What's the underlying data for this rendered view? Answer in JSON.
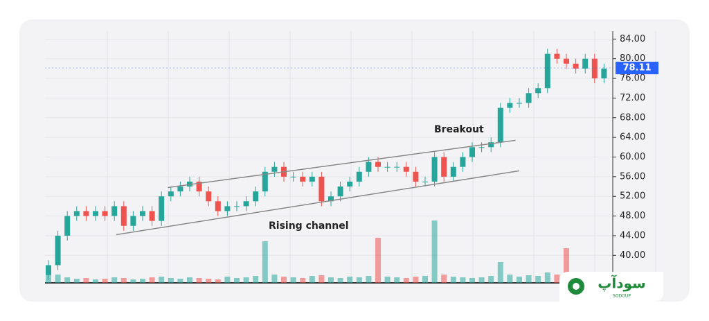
{
  "chart_data": {
    "type": "candlestick",
    "annotations": [
      "Breakout",
      "Rising channel"
    ],
    "categories": [
      null,
      null,
      null,
      null,
      null,
      null,
      null,
      null,
      null,
      null,
      null,
      null,
      null,
      null,
      null,
      null,
      null,
      null,
      null,
      null,
      null,
      null,
      null,
      null,
      null,
      null,
      null,
      null,
      null,
      null,
      null,
      null,
      null,
      null,
      null,
      null,
      null,
      null,
      null,
      null,
      null,
      null,
      null,
      null,
      null,
      null,
      null,
      null,
      null,
      null,
      null,
      null,
      null,
      null,
      null,
      null,
      null,
      null,
      null,
      null
    ],
    "open": [
      36,
      38,
      44,
      48,
      49,
      48,
      49,
      48,
      50,
      46,
      48,
      49,
      47,
      52,
      53,
      54,
      55,
      53,
      51,
      49,
      50,
      50,
      51,
      53,
      57,
      58,
      56,
      56,
      55,
      56,
      51,
      52,
      54,
      55,
      57,
      59,
      58,
      58,
      58,
      57,
      55,
      55,
      60,
      56,
      58,
      60,
      62,
      62,
      63,
      70,
      71,
      71,
      73,
      74,
      81,
      80,
      79,
      78,
      80,
      76
    ],
    "high": [
      39,
      45,
      49,
      50,
      50,
      50,
      50,
      51,
      51,
      49,
      50,
      50,
      53,
      54,
      55,
      56,
      56,
      54,
      52,
      51,
      51,
      52,
      54,
      58,
      59,
      59,
      57,
      57,
      57,
      57,
      53,
      55,
      56,
      58,
      60,
      60,
      59,
      59,
      59,
      58,
      56,
      61,
      61,
      59,
      61,
      63,
      63,
      64,
      71,
      72,
      72,
      74,
      75,
      82,
      82,
      81,
      80,
      81,
      81,
      79
    ],
    "low": [
      35,
      37,
      43,
      47,
      47,
      47,
      47,
      47,
      45,
      45,
      47,
      46,
      46,
      51,
      52,
      53,
      52,
      50,
      48,
      48,
      49,
      49,
      50,
      52,
      56,
      55,
      55,
      54,
      54,
      50,
      50,
      51,
      53,
      54,
      56,
      57,
      57,
      57,
      56,
      54,
      54,
      54,
      55,
      55,
      57,
      59,
      61,
      61,
      62,
      69,
      70,
      70,
      72,
      73,
      79,
      78,
      77,
      77,
      75,
      75
    ],
    "close": [
      38,
      44,
      48,
      49,
      48,
      49,
      48,
      50,
      46,
      48,
      49,
      47,
      52,
      53,
      54,
      55,
      53,
      51,
      49,
      50,
      50,
      51,
      53,
      57,
      58,
      56,
      56,
      55,
      56,
      51,
      52,
      54,
      55,
      57,
      59,
      58,
      58,
      58,
      57,
      55,
      55,
      60,
      56,
      58,
      60,
      62,
      62,
      63,
      70,
      71,
      71,
      73,
      74,
      81,
      80,
      79,
      78,
      80,
      76,
      78
    ],
    "volume": [
      15,
      12,
      8,
      6,
      7,
      5,
      6,
      8,
      7,
      5,
      6,
      8,
      9,
      7,
      6,
      8,
      7,
      6,
      5,
      9,
      7,
      8,
      10,
      60,
      12,
      9,
      8,
      7,
      10,
      11,
      8,
      7,
      9,
      8,
      10,
      65,
      9,
      8,
      7,
      9,
      10,
      90,
      12,
      9,
      8,
      7,
      8,
      10,
      30,
      12,
      9,
      11,
      10,
      15,
      12,
      50,
      14,
      11,
      15,
      16
    ],
    "up_color": "#26a69a",
    "down_color": "#ef5350",
    "ylim": [
      34.4,
      85.6
    ],
    "yticks": [
      {
        "value": 40,
        "label": "40.00"
      },
      {
        "value": 44,
        "label": "44.00"
      },
      {
        "value": 48,
        "label": "48.00"
      },
      {
        "value": 52,
        "label": "52.00"
      },
      {
        "value": 56,
        "label": "56.00"
      },
      {
        "value": 60,
        "label": "60.00"
      },
      {
        "value": 64,
        "label": "64.00"
      },
      {
        "value": 68,
        "label": "68.00"
      },
      {
        "value": 72,
        "label": "72.00"
      },
      {
        "value": 76,
        "label": "76.00"
      },
      {
        "value": 80,
        "label": "80.00"
      },
      {
        "value": 84,
        "label": "84.00"
      }
    ],
    "y2lim": [
      0,
      100
    ],
    "last_price": 78.11,
    "last_price_color": "#2962ff",
    "channels": [
      {
        "x": [
          12.7,
          49.6
        ],
        "y": [
          53.8,
          63.4
        ]
      },
      {
        "x": [
          7.2,
          50
        ],
        "y": [
          44.2,
          57.2
        ]
      }
    ],
    "channel_color": "#888888",
    "grid": true
  },
  "brand": {
    "name": "سودآپ",
    "latin": "SODOUP"
  }
}
